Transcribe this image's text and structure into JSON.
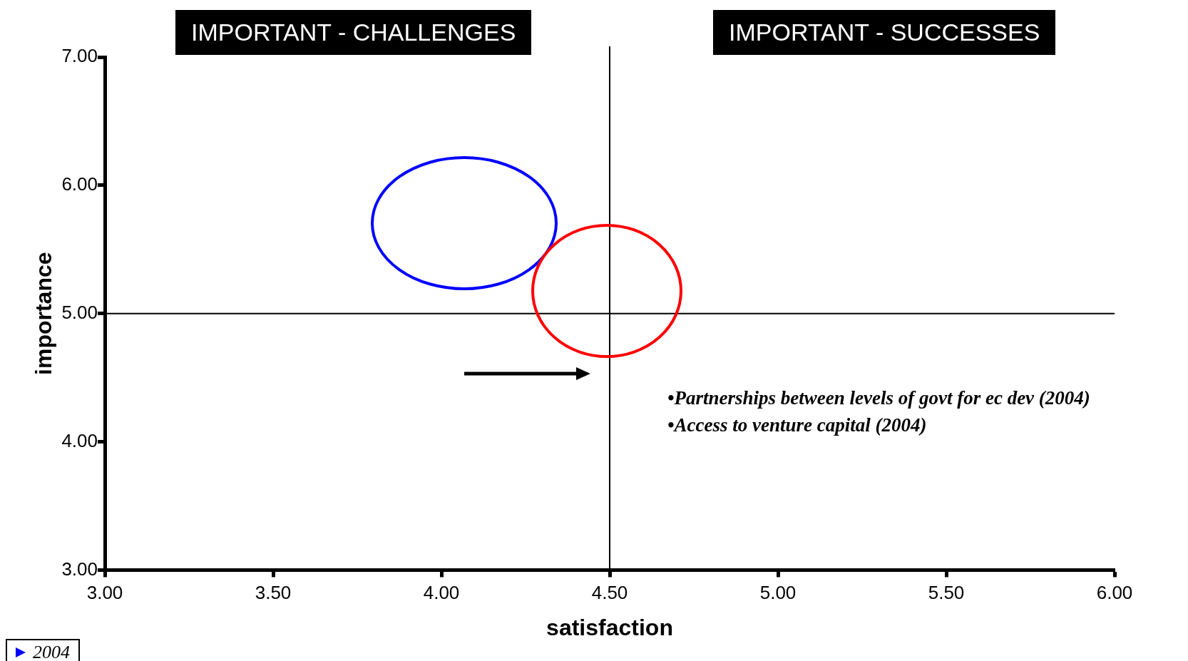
{
  "chart_data": {
    "type": "scatter",
    "xlabel": "satisfaction",
    "ylabel": "importance",
    "xlim": [
      3,
      6
    ],
    "ylim": [
      3,
      7
    ],
    "xticks": [
      {
        "value": 3,
        "label": "3.00"
      },
      {
        "value": 3.5,
        "label": "3.50"
      },
      {
        "value": 4,
        "label": "4.00"
      },
      {
        "value": 4.5,
        "label": "4.50"
      },
      {
        "value": 5,
        "label": "5.00"
      },
      {
        "value": 5.5,
        "label": "5.50"
      },
      {
        "value": 6,
        "label": "6.00"
      }
    ],
    "yticks": [
      {
        "value": 3,
        "label": "3.00"
      },
      {
        "value": 4,
        "label": "4.00"
      },
      {
        "value": 5,
        "label": "5.00"
      },
      {
        "value": 6,
        "label": "6.00"
      },
      {
        "value": 7,
        "label": "7.00"
      }
    ],
    "ref_lines": [
      {
        "axis": "x",
        "value": 4.5,
        "color": "#000000"
      },
      {
        "axis": "y",
        "value": 5,
        "color": "#000000"
      }
    ],
    "annotations": [
      "IMPORTANT - CHALLENGES",
      "IMPORTANT - SUCCESSES",
      "•Partnerships between levels of govt for ec dev (2004)",
      "•Access to venture capital (2004)",
      "2004"
    ],
    "grid": false
  }
}
